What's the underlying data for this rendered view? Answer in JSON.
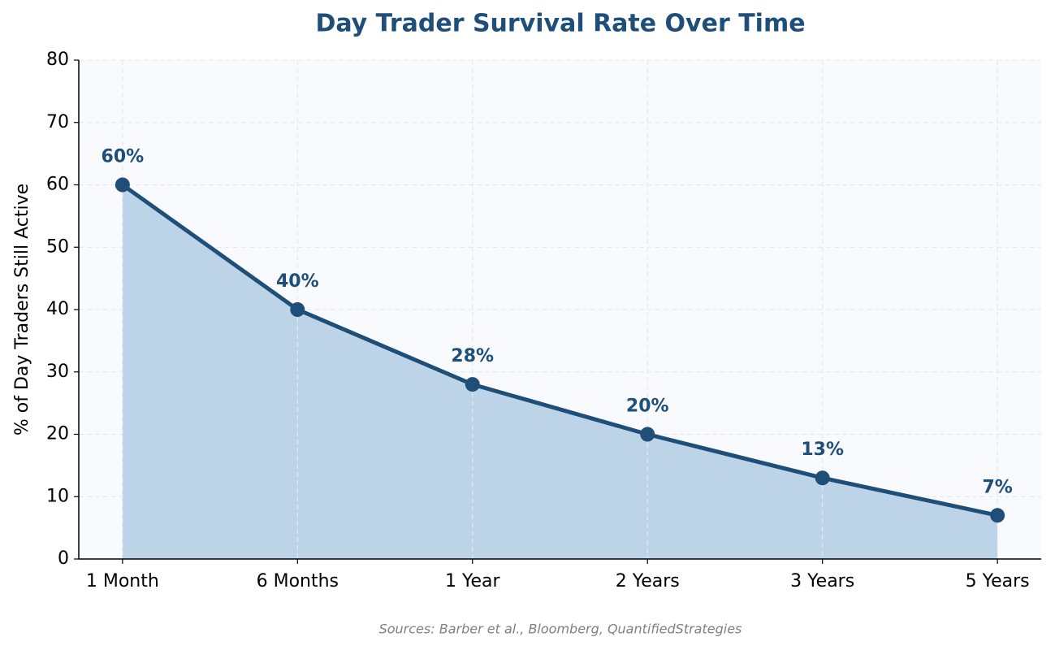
{
  "chart_data": {
    "type": "line",
    "title": "Day Trader Survival Rate Over Time",
    "y_label": "% of Day Traders Still Active",
    "note": "Sources: Barber et al., Bloomberg, QuantifiedStrategies",
    "categories": [
      "1 Month",
      "6 Months",
      "1 Year",
      "2 Years",
      "3 Years",
      "5 Years"
    ],
    "values": [
      60,
      40,
      28,
      20,
      13,
      7
    ],
    "value_labels": [
      "60%",
      "40%",
      "28%",
      "20%",
      "13%",
      "7%"
    ],
    "color": "#1f4e79",
    "fill_color": "#bdd3e8",
    "ylim": [
      0,
      80
    ],
    "yticks": [
      0,
      10,
      20,
      30,
      40,
      50,
      60,
      70,
      80
    ],
    "grid": true
  }
}
